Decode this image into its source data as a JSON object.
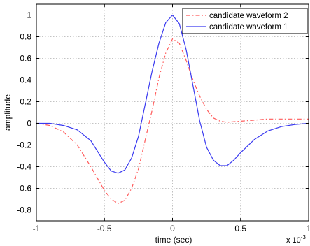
{
  "chart_data": {
    "type": "line",
    "xlabel": "time (sec)",
    "ylabel": "amplitude",
    "x_multiplier_label": "x 10",
    "x_multiplier_exponent": "-3",
    "xlim": [
      -1,
      1
    ],
    "ylim": [
      -0.9,
      1.1
    ],
    "xticks": [
      -1,
      -0.5,
      0,
      0.5,
      1
    ],
    "xtick_labels": [
      "-1",
      "-0.5",
      "0",
      "0.5",
      "1"
    ],
    "yticks": [
      -0.8,
      -0.6,
      -0.4,
      -0.2,
      0,
      0.2,
      0.4,
      0.6,
      0.8,
      1
    ],
    "ytick_labels": [
      "-0.8",
      "-0.6",
      "-0.4",
      "-0.2",
      "0",
      "0.2",
      "0.4",
      "0.6",
      "0.8",
      "1"
    ],
    "grid": true,
    "legend_position": "top-right",
    "series": [
      {
        "name": "candidate waveform 2",
        "color": "#ff5a5a",
        "style": "dashed",
        "x": [
          -1,
          -0.9,
          -0.8,
          -0.7,
          -0.6,
          -0.5,
          -0.45,
          -0.4,
          -0.35,
          -0.3,
          -0.25,
          -0.2,
          -0.15,
          -0.1,
          -0.05,
          0,
          0.05,
          0.1,
          0.15,
          0.2,
          0.25,
          0.3,
          0.35,
          0.4,
          0.5,
          0.6,
          0.7,
          0.8,
          0.9,
          1
        ],
        "y": [
          0,
          -0.02,
          -0.08,
          -0.2,
          -0.4,
          -0.62,
          -0.7,
          -0.74,
          -0.71,
          -0.6,
          -0.42,
          -0.15,
          0.12,
          0.42,
          0.65,
          0.78,
          0.74,
          0.58,
          0.4,
          0.25,
          0.13,
          0.05,
          0.02,
          0.01,
          0.02,
          0.03,
          0.04,
          0.04,
          0.04,
          0.04
        ]
      },
      {
        "name": "candidate waveform 1",
        "color": "#3a3af0",
        "style": "solid",
        "x": [
          -1,
          -0.9,
          -0.8,
          -0.7,
          -0.6,
          -0.5,
          -0.45,
          -0.4,
          -0.35,
          -0.3,
          -0.25,
          -0.2,
          -0.15,
          -0.1,
          -0.05,
          0,
          0.05,
          0.1,
          0.15,
          0.2,
          0.25,
          0.3,
          0.35,
          0.4,
          0.45,
          0.5,
          0.6,
          0.7,
          0.8,
          0.9,
          1
        ],
        "y": [
          0,
          0,
          -0.02,
          -0.06,
          -0.16,
          -0.36,
          -0.44,
          -0.46,
          -0.43,
          -0.32,
          -0.12,
          0.18,
          0.48,
          0.74,
          0.93,
          1.0,
          0.92,
          0.68,
          0.35,
          0.02,
          -0.22,
          -0.34,
          -0.39,
          -0.39,
          -0.34,
          -0.27,
          -0.15,
          -0.07,
          -0.03,
          -0.01,
          0
        ]
      }
    ]
  }
}
